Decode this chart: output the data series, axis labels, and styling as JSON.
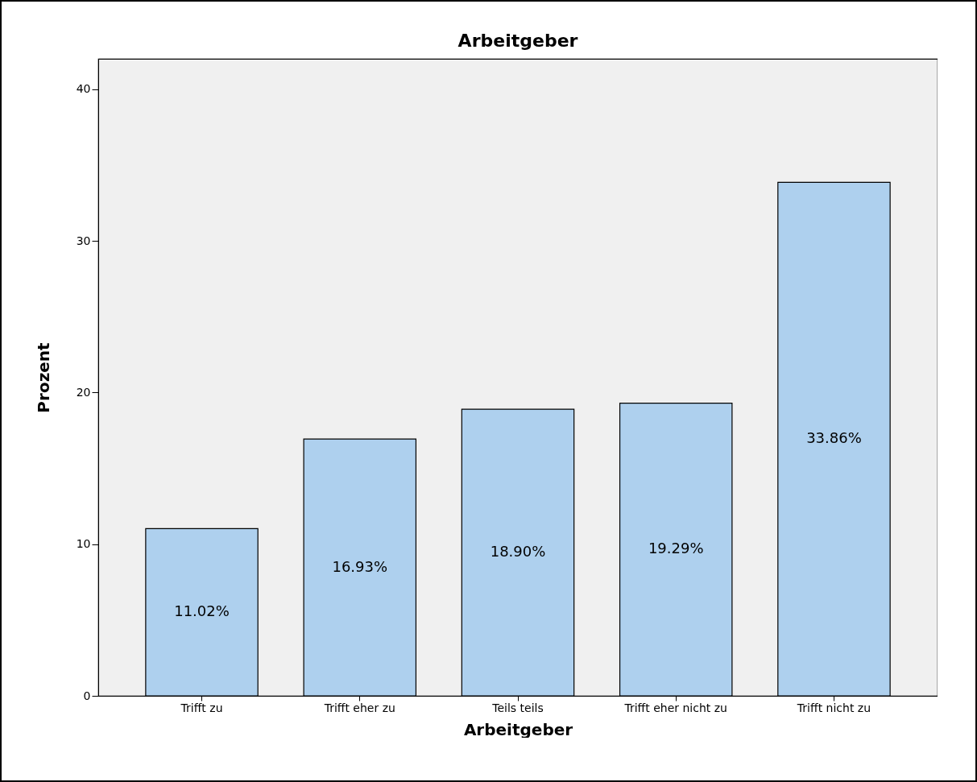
{
  "chart_data": {
    "type": "bar",
    "title": "Arbeitgeber",
    "xlabel": "Arbeitgeber",
    "ylabel": "Prozent",
    "categories": [
      "Trifft zu",
      "Trifft eher zu",
      "Teils teils",
      "Trifft eher nicht zu",
      "Trifft nicht zu"
    ],
    "values": [
      11.02,
      16.93,
      18.9,
      19.29,
      33.86
    ],
    "value_labels": [
      "11.02%",
      "16.93%",
      "18.90%",
      "19.29%",
      "33.86%"
    ],
    "color": "#aed0ee",
    "ylim": [
      0,
      42
    ],
    "yticks": [
      0,
      10,
      20,
      30,
      40
    ],
    "grid": false
  }
}
